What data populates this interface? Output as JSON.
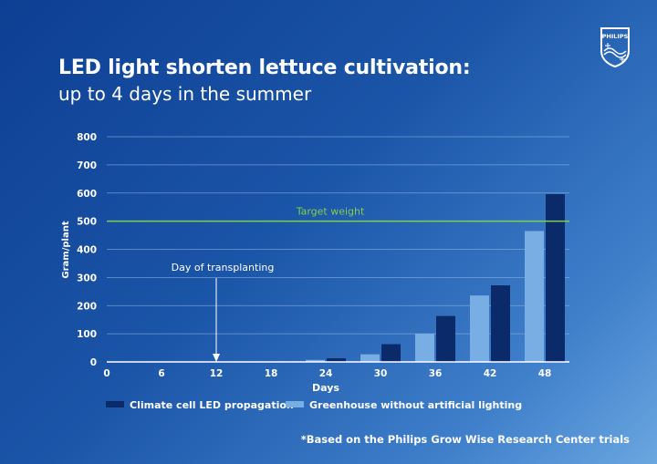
{
  "header": {
    "title": "LED light shorten lettuce cultivation:",
    "subtitle": "up to 4 days in the summer",
    "logo_text": "PHILIPS"
  },
  "footnote": "*Based on the Philips Grow Wise Research Center trials",
  "colors": {
    "led_series": "#0a2a6a",
    "greenhouse_series": "#78aee4",
    "target_line": "#7fd04a",
    "grid": "#8fb4e0"
  },
  "chart_data": {
    "type": "bar",
    "xlabel": "Days",
    "ylabel": "Gram/plant",
    "ylim": [
      0,
      800
    ],
    "yticks": [
      0,
      100,
      200,
      300,
      400,
      500,
      600,
      700,
      800
    ],
    "xlim": [
      0,
      48
    ],
    "xticks": [
      0,
      6,
      12,
      18,
      24,
      30,
      36,
      42,
      48
    ],
    "grid": true,
    "legend_position": "bottom",
    "categories": [
      24,
      30,
      36,
      42,
      48
    ],
    "series": [
      {
        "name": "Climate cell LED propagation",
        "values": [
          13,
          63,
          163,
          272,
          596
        ]
      },
      {
        "name": "Greenhouse without artificial lighting",
        "values": [
          7,
          27,
          100,
          236,
          465
        ]
      }
    ],
    "reference_line": {
      "label": "Target weight",
      "value": 500
    },
    "annotation": {
      "label": "Day of transplanting",
      "x": 12
    }
  }
}
